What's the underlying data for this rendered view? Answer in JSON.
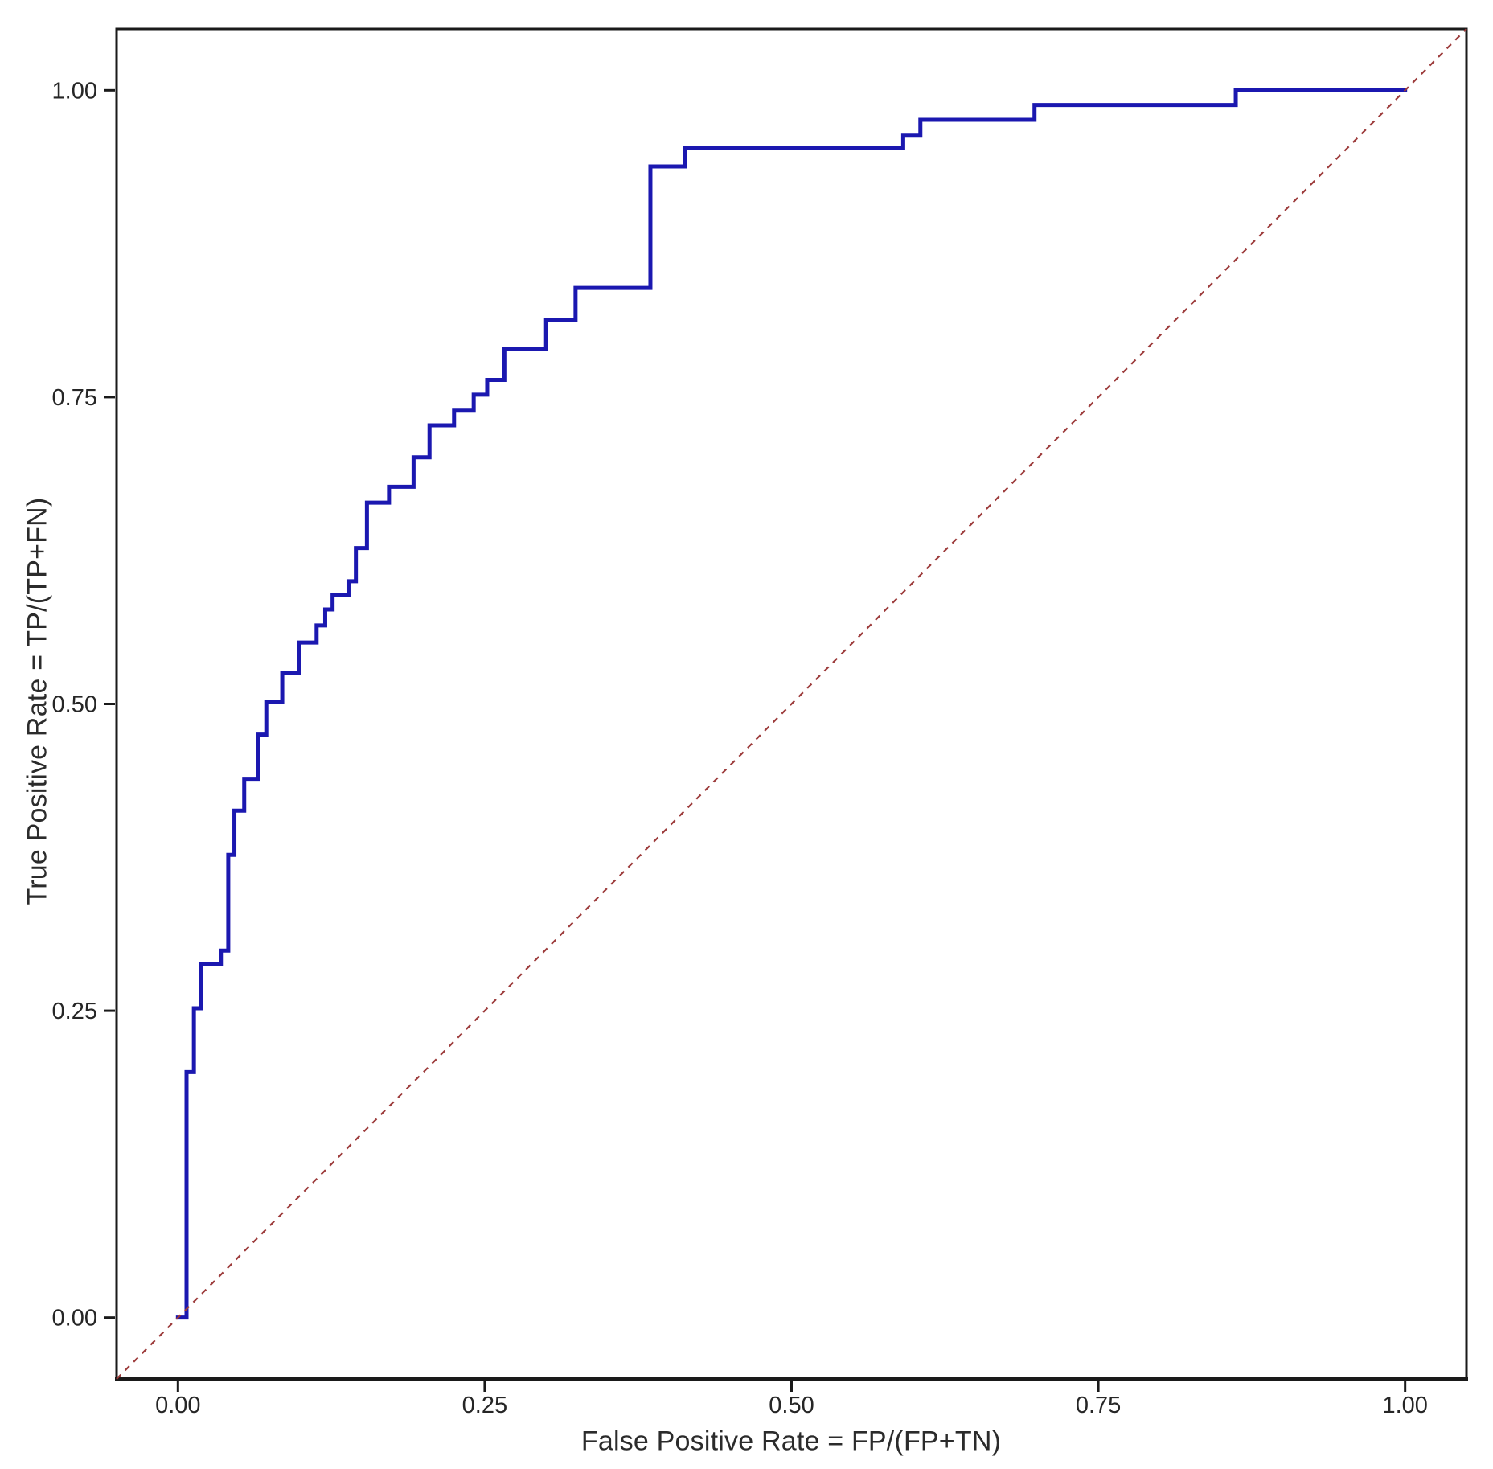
{
  "chart_data": {
    "type": "line",
    "subtype": "roc-step-curve",
    "title": "",
    "xlabel": "False Positive Rate = FP/(FP+TN)",
    "ylabel": "True Positive Rate = TP/(TP+FN)",
    "xlim": [
      -0.05,
      1.05
    ],
    "ylim": [
      -0.05,
      1.05
    ],
    "grid": false,
    "legend_position": "none",
    "x_ticks": [
      {
        "value": 0.0,
        "label": "0.00"
      },
      {
        "value": 0.25,
        "label": "0.25"
      },
      {
        "value": 0.5,
        "label": "0.50"
      },
      {
        "value": 0.75,
        "label": "0.75"
      },
      {
        "value": 1.0,
        "label": "1.00"
      }
    ],
    "y_ticks": [
      {
        "value": 0.0,
        "label": "0.00"
      },
      {
        "value": 0.25,
        "label": "0.25"
      },
      {
        "value": 0.5,
        "label": "0.50"
      },
      {
        "value": 0.75,
        "label": "0.75"
      },
      {
        "value": 1.0,
        "label": "1.00"
      }
    ],
    "series": [
      {
        "name": "roc-curve",
        "style": "step-hv",
        "color": "#1b18b0",
        "stroke_width": 5,
        "points": [
          [
            0.0,
            0.0
          ],
          [
            0.007,
            0.2
          ],
          [
            0.013,
            0.252
          ],
          [
            0.019,
            0.288
          ],
          [
            0.035,
            0.299
          ],
          [
            0.041,
            0.377
          ],
          [
            0.046,
            0.413
          ],
          [
            0.054,
            0.439
          ],
          [
            0.065,
            0.475
          ],
          [
            0.072,
            0.502
          ],
          [
            0.085,
            0.525
          ],
          [
            0.099,
            0.55
          ],
          [
            0.113,
            0.564
          ],
          [
            0.12,
            0.577
          ],
          [
            0.126,
            0.589
          ],
          [
            0.139,
            0.6
          ],
          [
            0.145,
            0.627
          ],
          [
            0.154,
            0.664
          ],
          [
            0.172,
            0.677
          ],
          [
            0.192,
            0.701
          ],
          [
            0.205,
            0.727
          ],
          [
            0.225,
            0.739
          ],
          [
            0.241,
            0.752
          ],
          [
            0.252,
            0.764
          ],
          [
            0.266,
            0.789
          ],
          [
            0.3,
            0.813
          ],
          [
            0.324,
            0.839
          ],
          [
            0.385,
            0.938
          ],
          [
            0.413,
            0.953
          ],
          [
            0.591,
            0.963
          ],
          [
            0.605,
            0.976
          ],
          [
            0.698,
            0.988
          ],
          [
            0.862,
            1.0
          ],
          [
            1.0,
            1.0
          ]
        ]
      },
      {
        "name": "chance-diagonal",
        "style": "dashed-line",
        "color": "#9c3a3a",
        "stroke_width": 2.2,
        "dash": "7.5 7.5",
        "points": [
          [
            -0.05,
            -0.05
          ],
          [
            1.05,
            1.05
          ]
        ]
      }
    ],
    "colors": {
      "curve": "#1b18b0",
      "diagonal": "#9c3a3a",
      "panel_border": "#1a1a1a",
      "tick_text": "#262626",
      "background": "#ffffff"
    }
  }
}
